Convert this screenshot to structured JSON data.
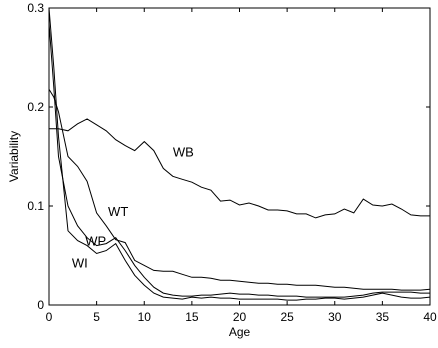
{
  "chart_data": {
    "type": "line",
    "xlabel": "Age",
    "ylabel": "Variability",
    "xlim": [
      0,
      40
    ],
    "ylim": [
      0,
      0.3
    ],
    "xticks": [
      0,
      5,
      10,
      15,
      20,
      25,
      30,
      35,
      40
    ],
    "yticks": [
      0,
      0.1,
      0.2,
      0.3
    ],
    "xtick_labels": [
      "0",
      "5",
      "10",
      "15",
      "20",
      "25",
      "30",
      "35",
      "40"
    ],
    "ytick_labels": [
      "0",
      "0.1",
      "0.2",
      "0.3"
    ],
    "grid": false,
    "legend": "none",
    "series": [
      {
        "name": "WB",
        "label_at": [
          13.0,
          0.155
        ],
        "x": [
          0,
          1,
          2,
          3,
          4,
          5,
          6,
          7,
          8,
          9,
          10,
          11,
          12,
          13,
          14,
          15,
          16,
          17,
          18,
          19,
          20,
          21,
          22,
          23,
          24,
          25,
          26,
          27,
          28,
          29,
          30,
          31,
          32,
          33,
          34,
          35,
          36,
          37,
          38,
          39,
          40
        ],
        "y": [
          0.178,
          0.178,
          0.176,
          0.183,
          0.188,
          0.182,
          0.176,
          0.167,
          0.161,
          0.156,
          0.165,
          0.156,
          0.138,
          0.13,
          0.127,
          0.124,
          0.119,
          0.116,
          0.105,
          0.106,
          0.101,
          0.103,
          0.1,
          0.096,
          0.096,
          0.095,
          0.092,
          0.092,
          0.088,
          0.091,
          0.092,
          0.097,
          0.093,
          0.107,
          0.101,
          0.1,
          0.102,
          0.097,
          0.091,
          0.09,
          0.09
        ]
      },
      {
        "name": "WT",
        "label_at": [
          6.2,
          0.095
        ],
        "x": [
          0,
          0.5,
          1,
          2,
          3,
          4,
          5,
          6,
          7,
          8,
          9,
          10,
          11,
          12,
          13,
          14,
          15,
          16,
          17,
          18,
          19,
          20,
          21,
          22,
          23,
          24,
          25,
          26,
          27,
          28,
          29,
          30,
          31,
          32,
          33,
          34,
          35,
          36,
          37,
          38,
          39,
          40
        ],
        "y": [
          0.218,
          0.21,
          0.195,
          0.15,
          0.14,
          0.125,
          0.093,
          0.08,
          0.066,
          0.063,
          0.045,
          0.04,
          0.035,
          0.034,
          0.034,
          0.031,
          0.028,
          0.028,
          0.027,
          0.025,
          0.025,
          0.024,
          0.023,
          0.022,
          0.022,
          0.021,
          0.021,
          0.02,
          0.02,
          0.02,
          0.019,
          0.018,
          0.018,
          0.017,
          0.016,
          0.016,
          0.016,
          0.016,
          0.015,
          0.015,
          0.015,
          0.016
        ]
      },
      {
        "name": "WP",
        "label_at": [
          3.8,
          0.065
        ],
        "x": [
          0,
          0.5,
          1,
          2,
          3,
          4,
          5,
          6,
          7,
          8,
          9,
          10,
          11,
          12,
          13,
          14,
          15,
          16,
          17,
          18,
          19,
          20,
          21,
          22,
          23,
          24,
          25,
          26,
          27,
          28,
          29,
          30,
          31,
          32,
          33,
          34,
          35,
          36,
          37,
          38,
          39,
          40
        ],
        "y": [
          0.285,
          0.22,
          0.15,
          0.1,
          0.08,
          0.068,
          0.06,
          0.062,
          0.068,
          0.055,
          0.04,
          0.028,
          0.018,
          0.012,
          0.01,
          0.009,
          0.009,
          0.01,
          0.01,
          0.011,
          0.012,
          0.011,
          0.011,
          0.01,
          0.01,
          0.009,
          0.009,
          0.009,
          0.008,
          0.008,
          0.008,
          0.008,
          0.008,
          0.009,
          0.01,
          0.012,
          0.013,
          0.013,
          0.013,
          0.013,
          0.012,
          0.012
        ]
      },
      {
        "name": "WI",
        "label_at": [
          2.4,
          0.043
        ],
        "x": [
          0,
          0.5,
          1,
          2,
          3,
          4,
          5,
          6,
          7,
          8,
          9,
          10,
          11,
          12,
          13,
          14,
          15,
          16,
          17,
          18,
          19,
          20,
          21,
          22,
          23,
          24,
          25,
          26,
          27,
          28,
          29,
          30,
          31,
          32,
          33,
          34,
          35,
          36,
          37,
          38,
          39,
          40
        ],
        "y": [
          0.3,
          0.24,
          0.17,
          0.075,
          0.065,
          0.06,
          0.052,
          0.055,
          0.062,
          0.045,
          0.03,
          0.02,
          0.012,
          0.008,
          0.007,
          0.006,
          0.008,
          0.007,
          0.008,
          0.007,
          0.007,
          0.006,
          0.006,
          0.006,
          0.006,
          0.006,
          0.005,
          0.005,
          0.006,
          0.006,
          0.007,
          0.007,
          0.006,
          0.007,
          0.008,
          0.01,
          0.012,
          0.01,
          0.008,
          0.007,
          0.007,
          0.008
        ]
      }
    ]
  }
}
